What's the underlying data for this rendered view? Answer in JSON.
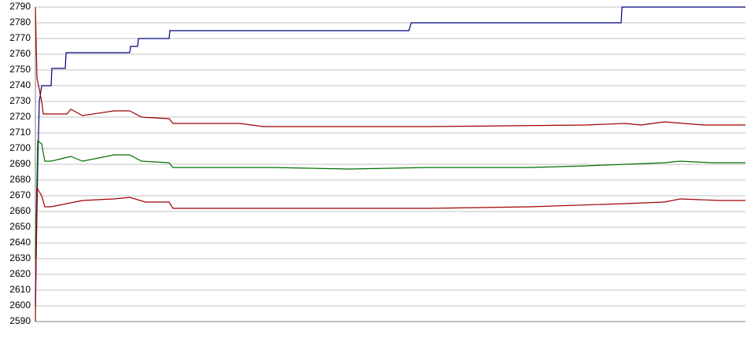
{
  "chart_data": {
    "type": "line",
    "xlim": [
      0,
      903
    ],
    "ylim": [
      2590,
      2790
    ],
    "yticks": [
      2590,
      2600,
      2610,
      2620,
      2630,
      2640,
      2650,
      2660,
      2670,
      2680,
      2690,
      2700,
      2710,
      2720,
      2730,
      2740,
      2750,
      2760,
      2770,
      2780,
      2790
    ],
    "grid": true,
    "series": [
      {
        "color": "#000080",
        "x": [
          0,
          3,
          5,
          8,
          20,
          21,
          38,
          39,
          120,
          121,
          130,
          131,
          170,
          171,
          475,
          478,
          745,
          746,
          903
        ],
        "values": [
          2600,
          2690,
          2730,
          2740,
          2740,
          2751,
          2751,
          2761,
          2761,
          2765,
          2765,
          2770,
          2770,
          2775,
          2775,
          2780,
          2780,
          2790,
          2790
        ]
      },
      {
        "color": "#a00000",
        "x": [
          0,
          2,
          4,
          8,
          10,
          20,
          40,
          45,
          60,
          100,
          120,
          135,
          170,
          175,
          260,
          290,
          500,
          700,
          750,
          770,
          800,
          850,
          903
        ],
        "values": [
          2790,
          2745,
          2740,
          2730,
          2722,
          2722,
          2722,
          2725,
          2721,
          2724,
          2724,
          2720,
          2719,
          2716,
          2716,
          2714,
          2714,
          2715,
          2716,
          2715,
          2717,
          2715,
          2715
        ]
      },
      {
        "color": "#007000",
        "x": [
          0,
          3,
          8,
          12,
          20,
          45,
          60,
          100,
          120,
          135,
          170,
          175,
          300,
          400,
          500,
          630,
          700,
          750,
          800,
          820,
          860,
          903
        ],
        "values": [
          2630,
          2705,
          2703,
          2692,
          2692,
          2695,
          2692,
          2696,
          2696,
          2692,
          2691,
          2688,
          2688,
          2687,
          2688,
          2688,
          2689,
          2690,
          2691,
          2692,
          2691,
          2691
        ]
      },
      {
        "color": "#a00000",
        "x": [
          0,
          2,
          8,
          12,
          20,
          60,
          100,
          120,
          140,
          170,
          175,
          500,
          630,
          750,
          800,
          820,
          870,
          903
        ],
        "values": [
          2590,
          2675,
          2670,
          2663,
          2663,
          2667,
          2668,
          2669,
          2666,
          2666,
          2662,
          2662,
          2663,
          2665,
          2666,
          2668,
          2667,
          2667
        ]
      }
    ]
  }
}
